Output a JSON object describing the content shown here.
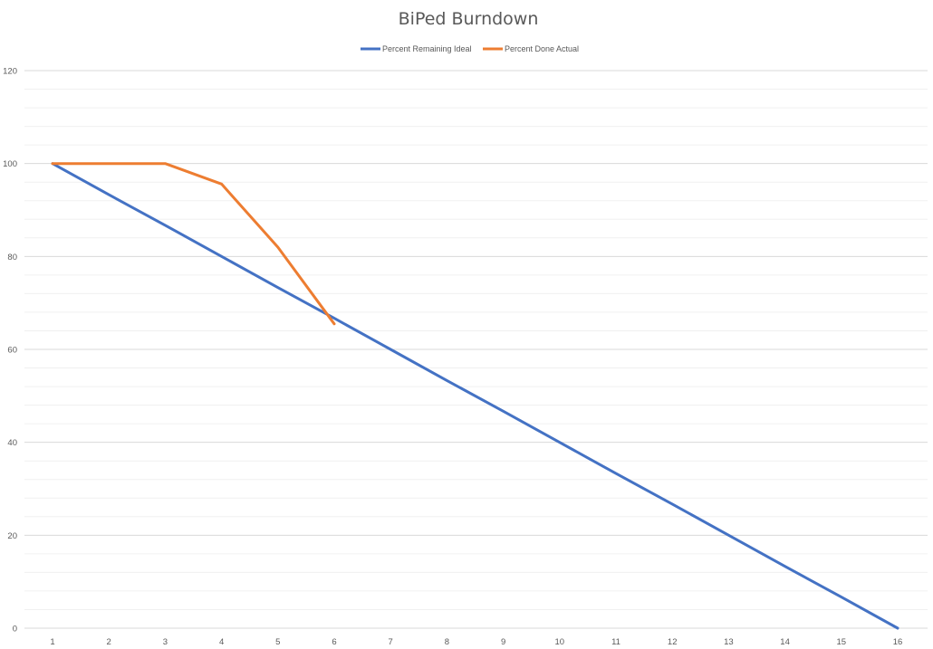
{
  "chart_data": {
    "type": "line",
    "title": "BiPed Burndown",
    "xlabel": "",
    "ylabel": "",
    "x": [
      1,
      2,
      3,
      4,
      5,
      6,
      7,
      8,
      9,
      10,
      11,
      12,
      13,
      14,
      15,
      16
    ],
    "ylim": [
      0,
      120
    ],
    "yticks": [
      0,
      20,
      40,
      60,
      80,
      100,
      120
    ],
    "grid": true,
    "minor_grid": true,
    "legend_position": "top",
    "series": [
      {
        "name": "Percent Remaining Ideal",
        "color": "#4472C4",
        "values": [
          100,
          93.3,
          86.7,
          80,
          73.3,
          66.7,
          60,
          53.3,
          46.7,
          40,
          33.3,
          26.7,
          20,
          13.3,
          6.7,
          0
        ]
      },
      {
        "name": "Percent Done Actual",
        "color": "#ED7D31",
        "values": [
          100,
          100,
          100,
          95.6,
          82,
          65.5,
          null,
          null,
          null,
          null,
          null,
          null,
          null,
          null,
          null,
          null
        ]
      }
    ]
  }
}
